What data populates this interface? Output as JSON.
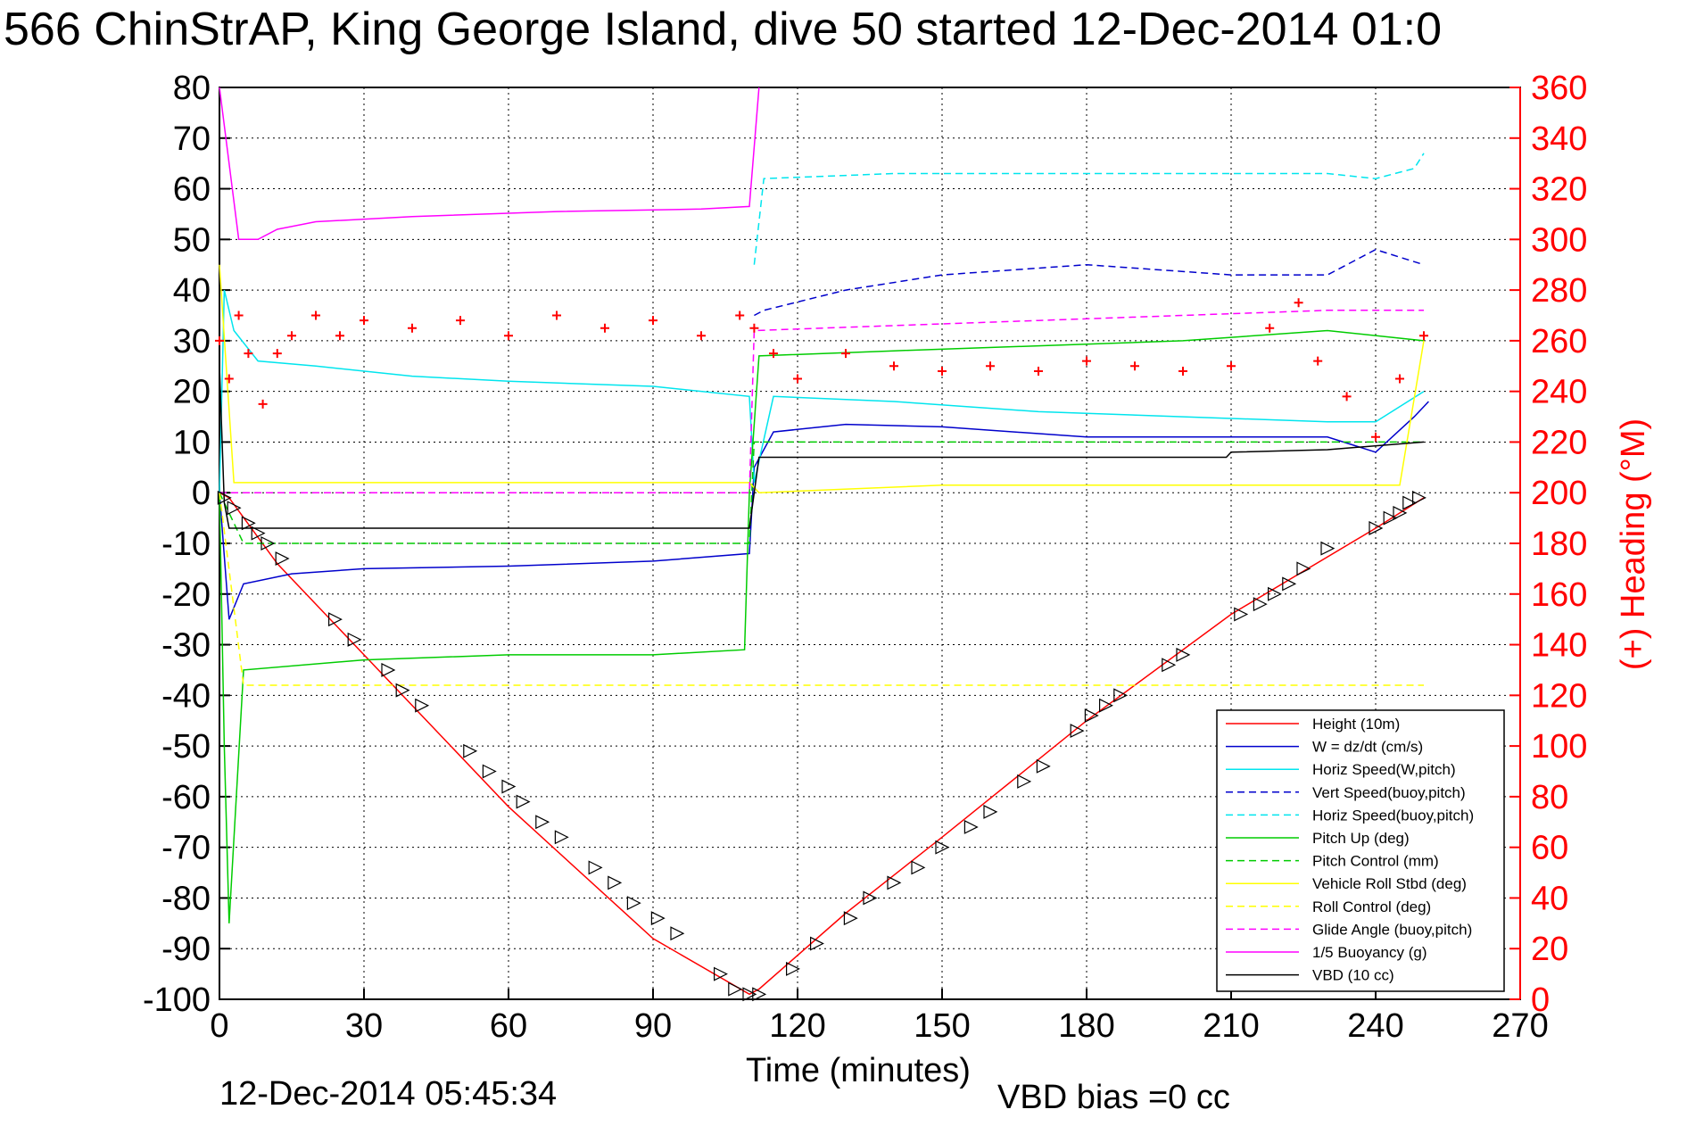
{
  "chart_data": {
    "type": "line",
    "title": "566 ChinStrAP, King George Island, dive 50 started 12-Dec-2014 01:0",
    "xlabel": "Time (minutes)",
    "ylabel_right": "(+) Heading (°M)",
    "xlim": [
      0,
      270
    ],
    "ylim_left": [
      -100,
      80
    ],
    "ylim_right": [
      0,
      360
    ],
    "xticks": [
      "0",
      "30",
      "60",
      "90",
      "120",
      "150",
      "180",
      "210",
      "240",
      "270"
    ],
    "yticks_left": [
      "80",
      "70",
      "60",
      "50",
      "40",
      "30",
      "20",
      "10",
      "0",
      "-10",
      "-20",
      "-30",
      "-40",
      "-50",
      "-60",
      "-70",
      "-80",
      "-90",
      "-100"
    ],
    "yticks_right": [
      "360",
      "340",
      "320",
      "300",
      "280",
      "260",
      "240",
      "220",
      "200",
      "180",
      "160",
      "140",
      "120",
      "100",
      "80",
      "60",
      "40",
      "20",
      "0"
    ],
    "grid": true,
    "legend_position": "bottom-right",
    "footer_date": "12-Dec-2014 05:45:34",
    "footer_vbd": "VBD bias =0 cc",
    "series": [
      {
        "name": "Height (10m)",
        "color": "#ff0000",
        "dash": "solid",
        "x": [
          0,
          2,
          12,
          30,
          60,
          90,
          110,
          112,
          130,
          150,
          180,
          210,
          240,
          250
        ],
        "y": [
          0,
          -1,
          -14,
          -32,
          -62,
          -88,
          -99,
          -98,
          -83,
          -68,
          -45,
          -24,
          -7,
          -1
        ]
      },
      {
        "name": "W = dz/dt (cm/s)",
        "color": "#0000cc",
        "dash": "solid",
        "x": [
          0,
          2,
          5,
          15,
          30,
          60,
          90,
          110,
          111,
          115,
          130,
          150,
          180,
          210,
          230,
          240,
          248,
          251
        ],
        "y": [
          0,
          -25,
          -18,
          -16,
          -15,
          -14.5,
          -13.5,
          -12,
          5,
          12,
          13.5,
          13,
          11,
          11,
          11,
          8,
          15,
          18
        ]
      },
      {
        "name": "Horiz Speed(W,pitch)",
        "color": "#00e5ee",
        "dash": "solid",
        "x": [
          0,
          1,
          3,
          8,
          20,
          40,
          60,
          90,
          110,
          111,
          115,
          140,
          170,
          200,
          230,
          240,
          250
        ],
        "y": [
          0,
          40,
          32,
          26,
          25,
          23,
          22,
          21,
          19,
          2,
          19,
          18,
          16,
          15,
          14,
          14,
          20
        ]
      },
      {
        "name": "Vert Speed(buoy,pitch)",
        "color": "#0000cc",
        "dash": "dashed",
        "x": [
          111,
          113,
          130,
          150,
          180,
          210,
          230,
          240,
          250
        ],
        "y": [
          35,
          36,
          40,
          43,
          45,
          43,
          43,
          48,
          45
        ]
      },
      {
        "name": "Horiz Speed(buoy,pitch)",
        "color": "#00e5ee",
        "dash": "dashed",
        "x": [
          111,
          113,
          140,
          170,
          200,
          230,
          240,
          248,
          250
        ],
        "y": [
          45,
          62,
          63,
          63,
          63,
          63,
          62,
          64,
          67
        ]
      },
      {
        "name": "Pitch Up (deg)",
        "color": "#00cc00",
        "dash": "solid",
        "x": [
          0,
          1,
          2,
          5,
          30,
          60,
          90,
          109,
          110,
          112,
          140,
          170,
          200,
          230,
          250
        ],
        "y": [
          0,
          -50,
          -85,
          -35,
          -33,
          -32,
          -32,
          -31,
          0,
          27,
          28,
          29,
          30,
          32,
          30
        ]
      },
      {
        "name": "Pitch Control (mm)",
        "color": "#00cc00",
        "dash": "dashed",
        "x": [
          0,
          5,
          30,
          60,
          90,
          110,
          111,
          130,
          160,
          190,
          220,
          230,
          250
        ],
        "y": [
          0,
          -10,
          -10,
          -10,
          -10,
          -10,
          10,
          10,
          10,
          10,
          10,
          10,
          10
        ]
      },
      {
        "name": "Vehicle Roll Stbd (deg)",
        "color": "#ffff00",
        "dash": "solid",
        "x": [
          0,
          3,
          30,
          60,
          90,
          110,
          112,
          150,
          200,
          245,
          250
        ],
        "y": [
          45,
          2,
          2,
          2,
          2,
          2,
          0,
          1.5,
          1.5,
          1.5,
          30
        ]
      },
      {
        "name": "Roll Control (deg)",
        "color": "#ffff00",
        "dash": "dashed",
        "x": [
          0,
          5,
          10,
          12,
          112,
          218,
          222,
          240,
          245,
          250
        ],
        "y": [
          0,
          -38,
          -38,
          -38,
          -38,
          -38,
          -38,
          -38,
          -38,
          -38
        ]
      },
      {
        "name": "Glide Angle (buoy,pitch)",
        "color": "#ff00ff",
        "dash": "dashed",
        "x": [
          0,
          110,
          111,
          140,
          170,
          200,
          230,
          250
        ],
        "y": [
          0,
          0,
          32,
          33,
          34,
          35,
          36,
          36
        ]
      },
      {
        "name": "1/5 Buoyancy (g)",
        "color": "#ff00ff",
        "dash": "solid",
        "x": [
          0,
          4,
          8,
          12,
          20,
          40,
          70,
          100,
          110,
          112
        ],
        "y": [
          80,
          50,
          50,
          52,
          53.5,
          54.5,
          55.5,
          56,
          56.5,
          80
        ]
      },
      {
        "name": "VBD (10 cc)",
        "color": "#000000",
        "dash": "solid",
        "x": [
          0,
          1,
          2,
          110,
          112,
          140,
          180,
          200,
          209,
          210,
          230,
          250
        ],
        "y": [
          25,
          -2,
          -7,
          -7,
          7,
          7,
          7,
          7,
          7,
          8,
          8.5,
          10
        ]
      }
    ],
    "heading_series": {
      "name": "Heading",
      "color": "#ff0000",
      "marker": "+",
      "axis": "right",
      "x": [
        0,
        2,
        4,
        6,
        9,
        12,
        15,
        20,
        25,
        30,
        40,
        50,
        60,
        70,
        80,
        90,
        100,
        108,
        111,
        115,
        120,
        130,
        140,
        150,
        160,
        170,
        180,
        190,
        200,
        210,
        218,
        224,
        228,
        234,
        240,
        245,
        250
      ],
      "y": [
        260,
        245,
        270,
        255,
        235,
        255,
        262,
        270,
        262,
        268,
        265,
        268,
        262,
        270,
        265,
        268,
        262,
        270,
        265,
        255,
        245,
        255,
        250,
        248,
        250,
        248,
        252,
        250,
        248,
        250,
        265,
        275,
        252,
        238,
        222,
        245,
        262
      ]
    },
    "buoyancy_marker_series": {
      "name": "depth markers",
      "color": "#000000",
      "marker": "triangle",
      "x": [
        1,
        3,
        6,
        8,
        10,
        13,
        24,
        28,
        35,
        38,
        42,
        52,
        56,
        60,
        63,
        67,
        71,
        78,
        82,
        86,
        91,
        95,
        104,
        107,
        110,
        112,
        119,
        124,
        131,
        135,
        140,
        145,
        150,
        156,
        160,
        167,
        171,
        178,
        181,
        184,
        187,
        197,
        200,
        212,
        216,
        219,
        222,
        225,
        230,
        240,
        243,
        245,
        247,
        249
      ],
      "y": [
        -1,
        -3,
        -6,
        -8,
        -10,
        -13,
        -25,
        -29,
        -35,
        -39,
        -42,
        -51,
        -55,
        -58,
        -61,
        -65,
        -68,
        -74,
        -77,
        -81,
        -84,
        -87,
        -95,
        -98,
        -99,
        -99,
        -94,
        -89,
        -84,
        -80,
        -77,
        -74,
        -70,
        -66,
        -63,
        -57,
        -54,
        -47,
        -44,
        -42,
        -40,
        -34,
        -32,
        -24,
        -22,
        -20,
        -18,
        -15,
        -11,
        -7,
        -5,
        -4,
        -2,
        -1
      ]
    }
  },
  "legend": {
    "entries": [
      "Height (10m)",
      "W = dz/dt (cm/s)",
      "Horiz Speed(W,pitch)",
      "Vert Speed(buoy,pitch)",
      "Horiz Speed(buoy,pitch)",
      "Pitch Up (deg)",
      "Pitch Control (mm)",
      "Vehicle Roll Stbd (deg)",
      "Roll Control (deg)",
      "Glide Angle (buoy,pitch)",
      "1/5 Buoyancy (g)",
      "VBD (10 cc)"
    ]
  }
}
